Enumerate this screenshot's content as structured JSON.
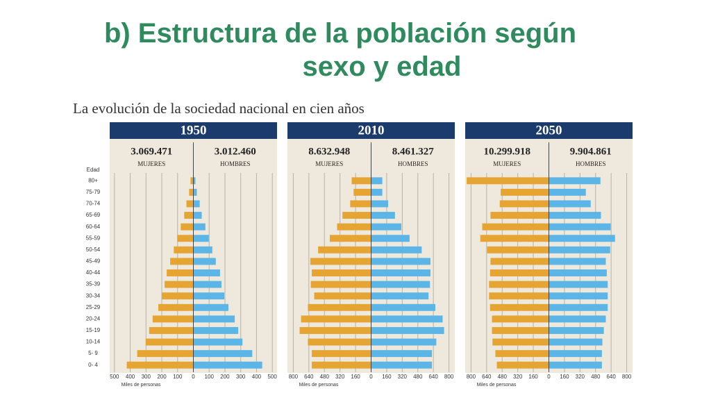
{
  "title_lines": [
    "b) Estructura de la población según",
    "sexo y edad"
  ],
  "subtitle": "La evolución de la sociedad nacional en cien años",
  "age_label": "Edad",
  "age_groups": [
    "80+",
    "75-79",
    "70-74",
    "65-69",
    "60-64",
    "55-59",
    "50-54",
    "45-49",
    "40-44",
    "35-39",
    "30-34",
    "25-29",
    "20-24",
    "15-19",
    "10-14",
    "5- 9",
    "0- 4"
  ],
  "chart_data": [
    {
      "type": "pyramid",
      "title": "1950",
      "xlabel": "Miles de personas",
      "xlim": [
        -530,
        530
      ],
      "xticks": [
        {
          "value": -500,
          "label": "500"
        },
        {
          "value": -400,
          "label": "400"
        },
        {
          "value": -300,
          "label": "300"
        },
        {
          "value": -200,
          "label": "200"
        },
        {
          "value": -100,
          "label": "100"
        },
        0,
        100,
        200,
        300,
        400,
        500
      ],
      "grid": true,
      "series": [
        {
          "name": "MUJERES",
          "total": "3.069.471",
          "color": "#e6a532",
          "side": "left",
          "values": [
            18,
            27,
            44,
            58,
            80,
            102,
            124,
            147,
            169,
            182,
            200,
            222,
            258,
            280,
            302,
            356,
            422
          ]
        },
        {
          "name": "HOMBRES",
          "total": "3.012.460",
          "color": "#5bb5e6",
          "side": "right",
          "values": [
            13,
            22,
            40,
            53,
            76,
            98,
            120,
            142,
            169,
            178,
            196,
            222,
            262,
            284,
            311,
            373,
            436
          ]
        }
      ]
    },
    {
      "type": "pyramid",
      "title": "2010",
      "xlabel": "Miles de personas",
      "xlim": [
        -860,
        860
      ],
      "xticks": [
        {
          "value": -800,
          "label": "800"
        },
        {
          "value": -640,
          "label": "640"
        },
        {
          "value": -480,
          "label": "480"
        },
        {
          "value": -320,
          "label": "320"
        },
        {
          "value": -160,
          "label": "160"
        },
        0,
        160,
        320,
        480,
        640,
        800
      ],
      "grid": true,
      "series": [
        {
          "name": "MUJERES",
          "total": "8.632.948",
          "color": "#e6a532",
          "side": "left",
          "values": [
            200,
            180,
            215,
            295,
            350,
            425,
            545,
            625,
            610,
            620,
            585,
            650,
            720,
            735,
            650,
            610,
            610
          ]
        },
        {
          "name": "HOMBRES",
          "total": "8.461.327",
          "color": "#5bb5e6",
          "side": "right",
          "values": [
            115,
            115,
            175,
            245,
            310,
            395,
            520,
            610,
            610,
            605,
            590,
            660,
            735,
            750,
            670,
            625,
            625
          ]
        }
      ]
    },
    {
      "type": "pyramid",
      "title": "2050",
      "xlabel": "Miles de personas",
      "xlim": [
        -860,
        860
      ],
      "xticks": [
        {
          "value": -800,
          "label": "800"
        },
        {
          "value": -640,
          "label": "640"
        },
        {
          "value": -480,
          "label": "480"
        },
        {
          "value": -320,
          "label": "320"
        },
        {
          "value": -160,
          "label": "160"
        },
        0,
        160,
        320,
        480,
        640,
        800
      ],
      "grid": true,
      "series": [
        {
          "name": "MUJERES",
          "total": "10.299.918",
          "color": "#e6a532",
          "side": "left",
          "values": [
            845,
            495,
            505,
            600,
            685,
            705,
            635,
            600,
            605,
            615,
            615,
            605,
            585,
            585,
            580,
            550,
            535
          ]
        },
        {
          "name": "HOMBRES",
          "total": "9.904.861",
          "color": "#5bb5e6",
          "side": "right",
          "values": [
            530,
            380,
            430,
            535,
            635,
            680,
            630,
            585,
            595,
            605,
            605,
            605,
            585,
            565,
            550,
            545,
            545
          ]
        }
      ]
    }
  ]
}
